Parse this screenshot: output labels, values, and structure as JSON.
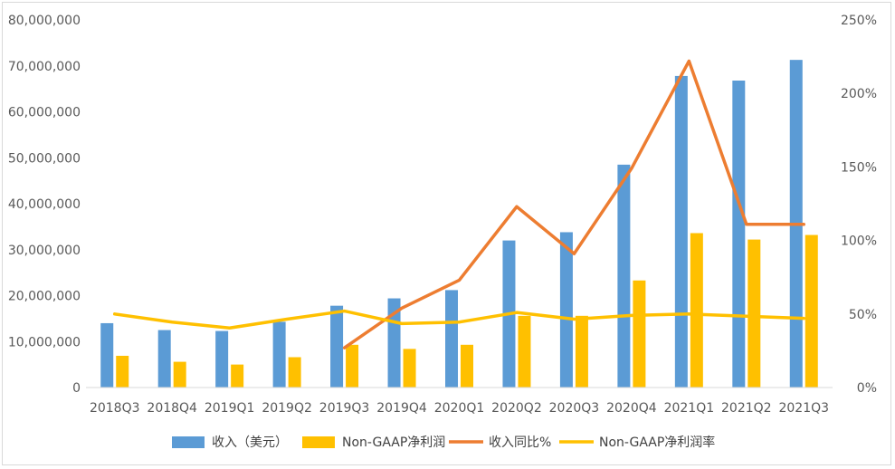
{
  "chart_data": {
    "type": "bar",
    "categories": [
      "2018Q3",
      "2018Q4",
      "2019Q1",
      "2019Q2",
      "2019Q3",
      "2019Q4",
      "2020Q1",
      "2020Q2",
      "2020Q3",
      "2020Q4",
      "2021Q1",
      "2021Q2",
      "2021Q3"
    ],
    "series": [
      {
        "name": "收入（美元）",
        "type": "bar",
        "axis": "left",
        "color": "#5B9BD5",
        "values": [
          14000000,
          12500000,
          12300000,
          14300000,
          17800000,
          19400000,
          21200000,
          32000000,
          33800000,
          48500000,
          67800000,
          66800000,
          71300000
        ]
      },
      {
        "name": "Non-GAAP净利润",
        "type": "bar",
        "axis": "left",
        "color": "#FFC000",
        "values": [
          6900000,
          5600000,
          5000000,
          6600000,
          9300000,
          8400000,
          9300000,
          15600000,
          15600000,
          23300000,
          33600000,
          32200000,
          33200000
        ]
      },
      {
        "name": "收入同比%",
        "type": "line",
        "axis": "right",
        "color": "#ED7D31",
        "values": [
          null,
          null,
          null,
          null,
          27,
          54,
          73,
          123,
          91,
          149,
          222,
          111,
          111
        ]
      },
      {
        "name": "Non-GAAP净利润率",
        "type": "line",
        "axis": "right",
        "color": "#FFC000",
        "values": [
          50,
          44.5,
          40.5,
          46.5,
          52,
          43.5,
          44.5,
          51,
          46.5,
          49,
          50,
          48.5,
          47
        ]
      }
    ],
    "y_left": {
      "min": 0,
      "max": 80000000,
      "ticks": [
        "0",
        "10,000,000",
        "20,000,000",
        "30,000,000",
        "40,000,000",
        "50,000,000",
        "60,000,000",
        "70,000,000",
        "80,000,000"
      ]
    },
    "y_right": {
      "min": 0,
      "max": 250,
      "ticks": [
        "0%",
        "50%",
        "100%",
        "150%",
        "200%",
        "250%"
      ]
    },
    "grid": false,
    "legend": "bottom"
  }
}
